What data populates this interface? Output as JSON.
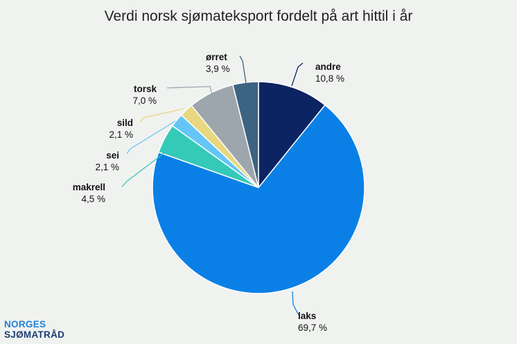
{
  "chart_data": {
    "type": "pie",
    "title": "Verdi norsk sjømateksport fordelt på art hittil i år",
    "slices": [
      {
        "name": "andre",
        "value": 10.8,
        "label": "10,8 %",
        "color": "#0c2461"
      },
      {
        "name": "laks",
        "value": 69.7,
        "label": "69,7 %",
        "color": "#0a80e6"
      },
      {
        "name": "makrell",
        "value": 4.5,
        "label": "4,5 %",
        "color": "#35c9b8"
      },
      {
        "name": "sei",
        "value": 2.1,
        "label": "2,1 %",
        "color": "#66c5f7"
      },
      {
        "name": "sild",
        "value": 2.1,
        "label": "2,1 %",
        "color": "#e8d77e"
      },
      {
        "name": "torsk",
        "value": 7.0,
        "label": "7,0 %",
        "color": "#9ea6ad"
      },
      {
        "name": "ørret",
        "value": 3.9,
        "label": "3,9 %",
        "color": "#3d6383"
      }
    ]
  },
  "logo": {
    "line1": "NORGES",
    "line2": "SJØMATRÅD"
  }
}
